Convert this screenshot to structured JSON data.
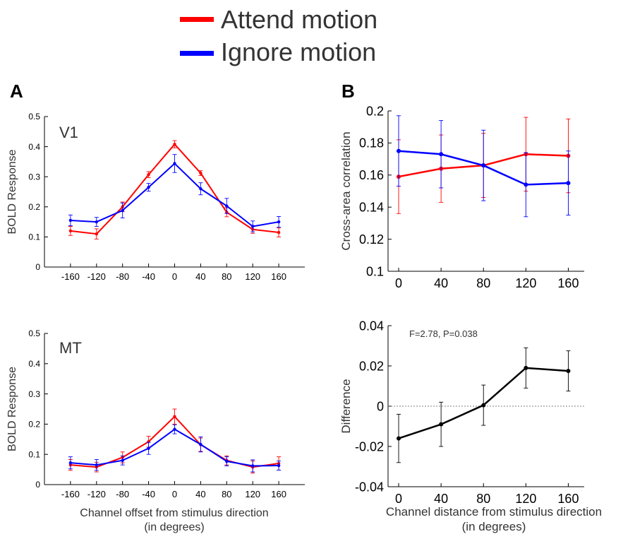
{
  "legend": {
    "items": [
      {
        "label": "Attend motion",
        "color": "#ff0000"
      },
      {
        "label": "Ignore motion",
        "color": "#0000ff"
      }
    ]
  },
  "panels": {
    "a": "A",
    "b": "B"
  },
  "a_xlabel_line1": "Channel offset from stimulus direction",
  "a_xlabel_line2": "(in degrees)",
  "b_xlabel_line1": "Channel distance from stimulus direction",
  "b_xlabel_line2": "(in degrees)",
  "chart_data": [
    {
      "type": "line",
      "id": "v1",
      "annotation": "V1",
      "ylabel": "BOLD Response",
      "x": [
        -160,
        -120,
        -80,
        -40,
        0,
        40,
        80,
        120,
        160
      ],
      "xticks": [
        "-160",
        "-120",
        "-80",
        "-40",
        "0",
        "40",
        "80",
        "120",
        "160"
      ],
      "yticks": [
        "0",
        "0.1",
        "0.2",
        "0.3",
        "0.4",
        "0.5"
      ],
      "ylim": [
        0,
        0.5
      ],
      "xlim": [
        -200,
        200
      ],
      "series": [
        {
          "name": "Attend motion",
          "color": "#ff0000",
          "values": [
            0.12,
            0.11,
            0.2,
            0.307,
            0.408,
            0.312,
            0.182,
            0.125,
            0.115
          ],
          "errors": [
            0.015,
            0.017,
            0.016,
            0.01,
            0.012,
            0.008,
            0.015,
            0.013,
            0.015
          ]
        },
        {
          "name": "Ignore motion",
          "color": "#0000ff",
          "values": [
            0.155,
            0.15,
            0.188,
            0.265,
            0.344,
            0.26,
            0.203,
            0.135,
            0.15
          ],
          "errors": [
            0.018,
            0.015,
            0.025,
            0.013,
            0.03,
            0.02,
            0.025,
            0.018,
            0.018
          ]
        }
      ]
    },
    {
      "type": "line",
      "id": "mt",
      "annotation": "MT",
      "ylabel": "BOLD Response",
      "x": [
        -160,
        -120,
        -80,
        -40,
        0,
        40,
        80,
        120,
        160
      ],
      "xticks": [
        "-160",
        "-120",
        "-80",
        "-40",
        "0",
        "40",
        "80",
        "120",
        "160"
      ],
      "yticks": [
        "0",
        "0.1",
        "0.2",
        "0.3",
        "0.4",
        "0.5"
      ],
      "ylim": [
        0,
        0.5
      ],
      "xlim": [
        -200,
        200
      ],
      "series": [
        {
          "name": "Attend motion",
          "color": "#ff0000",
          "values": [
            0.065,
            0.058,
            0.09,
            0.142,
            0.225,
            0.132,
            0.08,
            0.058,
            0.07
          ],
          "errors": [
            0.018,
            0.016,
            0.018,
            0.018,
            0.025,
            0.022,
            0.015,
            0.02,
            0.022
          ]
        },
        {
          "name": "Ignore motion",
          "color": "#0000ff",
          "values": [
            0.072,
            0.065,
            0.08,
            0.12,
            0.183,
            0.133,
            0.077,
            0.062,
            0.063
          ],
          "errors": [
            0.02,
            0.018,
            0.015,
            0.02,
            0.015,
            0.025,
            0.015,
            0.02,
            0.015
          ]
        }
      ]
    },
    {
      "type": "line",
      "id": "corr",
      "ylabel": "Cross-area correlation",
      "x": [
        0,
        40,
        80,
        120,
        160
      ],
      "xticks": [
        "0",
        "40",
        "80",
        "120",
        "160"
      ],
      "yticks": [
        "0.1",
        "0.12",
        "0.14",
        "0.16",
        "0.18",
        "0.2"
      ],
      "ylim": [
        0.1,
        0.2
      ],
      "xlim": [
        -10,
        175
      ],
      "series": [
        {
          "name": "Attend motion",
          "color": "#ff0000",
          "values": [
            0.159,
            0.164,
            0.166,
            0.173,
            0.172
          ],
          "errors": [
            0.023,
            0.021,
            0.02,
            0.023,
            0.023
          ]
        },
        {
          "name": "Ignore motion",
          "color": "#0000ff",
          "values": [
            0.175,
            0.173,
            0.166,
            0.154,
            0.155
          ],
          "errors": [
            0.022,
            0.021,
            0.022,
            0.02,
            0.02
          ]
        }
      ]
    },
    {
      "type": "line",
      "id": "diff",
      "ylabel": "Difference",
      "annotation": "F=2.78, P=0.038",
      "x": [
        0,
        40,
        80,
        120,
        160
      ],
      "xticks": [
        "0",
        "40",
        "80",
        "120",
        "160"
      ],
      "yticks": [
        "-0.04",
        "-0.02",
        "0",
        "0.02",
        "0.04"
      ],
      "ylim": [
        -0.04,
        0.04
      ],
      "xlim": [
        -10,
        175
      ],
      "series": [
        {
          "color": "#000000",
          "values": [
            -0.016,
            -0.009,
            0.0005,
            0.019,
            0.0175
          ],
          "errors": [
            0.012,
            0.011,
            0.01,
            0.01,
            0.01
          ]
        }
      ]
    }
  ]
}
